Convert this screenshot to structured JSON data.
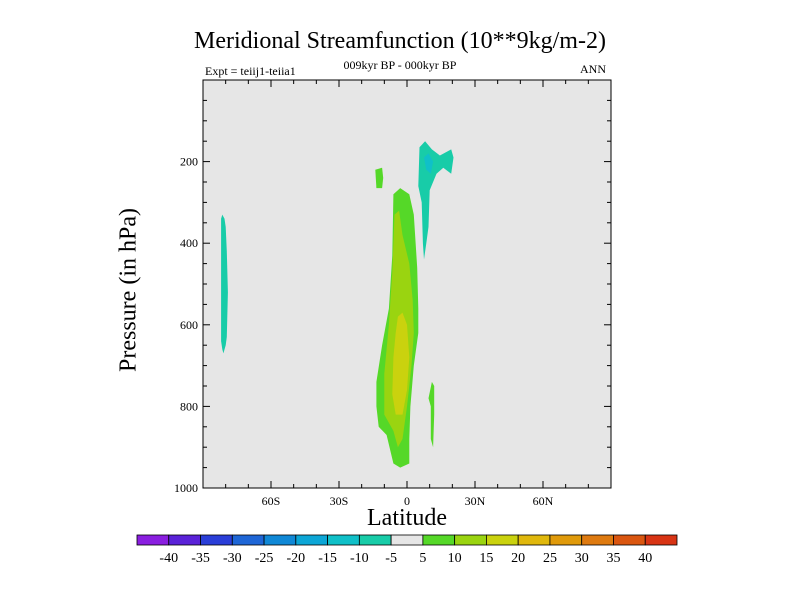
{
  "chart_data": {
    "type": "heatmap",
    "title": "Meridional Streamfunction (10**9kg/m-2)",
    "subtitle_left": "Expt = teiij1-teiia1",
    "subtitle_center": "009kyr BP - 000kyr BP",
    "subtitle_right": "ANN",
    "xlabel": "Latitude",
    "ylabel": "Pressure (in hPa)",
    "x_range": [
      -90,
      90
    ],
    "y_range": [
      0,
      1000
    ],
    "y_reversed": true,
    "x_ticks": [
      {
        "value": -60,
        "label": "60S"
      },
      {
        "value": -30,
        "label": "30S"
      },
      {
        "value": 0,
        "label": "0"
      },
      {
        "value": 30,
        "label": "30N"
      },
      {
        "value": 60,
        "label": "60N"
      }
    ],
    "y_ticks": [
      {
        "value": 200,
        "label": "200"
      },
      {
        "value": 400,
        "label": "400"
      },
      {
        "value": 600,
        "label": "600"
      },
      {
        "value": 800,
        "label": "800"
      },
      {
        "value": 1000,
        "label": "1000"
      }
    ],
    "background_color": "#e6e6e6",
    "colorbar": {
      "levels": [
        "-40",
        "-35",
        "-30",
        "-25",
        "-20",
        "-15",
        "-10",
        "-5",
        "5",
        "10",
        "15",
        "20",
        "25",
        "30",
        "35",
        "40"
      ],
      "colors": [
        "#8a1ee0",
        "#5a22d8",
        "#2a3ed8",
        "#1e66d6",
        "#1088d6",
        "#0ca6d6",
        "#10c0c8",
        "#18cca8",
        "#e6e6e6",
        "#55d828",
        "#9ad410",
        "#cad20e",
        "#e0b80c",
        "#e09a0a",
        "#de7a10",
        "#da5610",
        "#d83414"
      ]
    },
    "regions": [
      {
        "name": "sh-highlat-negative",
        "value_range": [
          -10,
          -5
        ],
        "color": "#18cca8",
        "points": [
          [
            -81.5,
            330
          ],
          [
            -80.5,
            340
          ],
          [
            -80.0,
            360
          ],
          [
            -79.5,
            420
          ],
          [
            -79.0,
            520
          ],
          [
            -79.5,
            630
          ],
          [
            -80.0,
            650
          ],
          [
            -81.0,
            670
          ],
          [
            -81.5,
            660
          ],
          [
            -82.0,
            640
          ],
          [
            -82.0,
            500
          ],
          [
            -82.0,
            380
          ],
          [
            -82.0,
            340
          ]
        ]
      },
      {
        "name": "nh-upper-negative",
        "value_range": [
          -10,
          -5
        ],
        "color": "#18cca8",
        "points": [
          [
            5.5,
            165
          ],
          [
            8.0,
            150
          ],
          [
            11.0,
            170
          ],
          [
            14.5,
            185
          ],
          [
            19.5,
            170
          ],
          [
            20.5,
            190
          ],
          [
            19.5,
            230
          ],
          [
            16.0,
            215
          ],
          [
            13.0,
            230
          ],
          [
            10.0,
            270
          ],
          [
            9.5,
            360
          ],
          [
            8.5,
            400
          ],
          [
            7.5,
            440
          ],
          [
            7.0,
            400
          ],
          [
            6.5,
            300
          ],
          [
            5.0,
            260
          ]
        ]
      },
      {
        "name": "nh-upper-negative-core",
        "value_range": [
          -15,
          -10
        ],
        "color": "#10c0c8",
        "points": [
          [
            7.5,
            190
          ],
          [
            9.5,
            180
          ],
          [
            11.5,
            200
          ],
          [
            10.5,
            230
          ],
          [
            8.5,
            220
          ]
        ]
      },
      {
        "name": "tropical-upper-positive",
        "value_range": [
          5,
          10
        ],
        "color": "#55d828",
        "points": [
          [
            -14.0,
            220
          ],
          [
            -11.0,
            215
          ],
          [
            -10.5,
            240
          ],
          [
            -11.0,
            265
          ],
          [
            -13.5,
            265
          ]
        ]
      },
      {
        "name": "tropical-positive-cell",
        "value_range": [
          5,
          10
        ],
        "color": "#55d828",
        "points": [
          [
            -6.0,
            280
          ],
          [
            -3.0,
            265
          ],
          [
            1.0,
            280
          ],
          [
            3.0,
            330
          ],
          [
            4.5,
            460
          ],
          [
            5.0,
            560
          ],
          [
            5.0,
            620
          ],
          [
            3.0,
            700
          ],
          [
            1.5,
            800
          ],
          [
            1.0,
            880
          ],
          [
            1.0,
            940
          ],
          [
            -3.0,
            950
          ],
          [
            -6.0,
            940
          ],
          [
            -9.0,
            870
          ],
          [
            -12.5,
            850
          ],
          [
            -13.5,
            800
          ],
          [
            -13.5,
            740
          ],
          [
            -11.0,
            650
          ],
          [
            -8.0,
            560
          ],
          [
            -6.5,
            430
          ]
        ]
      },
      {
        "name": "tropical-positive-cell-inner",
        "value_range": [
          10,
          15
        ],
        "color": "#9ad410",
        "points": [
          [
            -5.5,
            330
          ],
          [
            -3.5,
            320
          ],
          [
            -2.0,
            380
          ],
          [
            1.0,
            450
          ],
          [
            2.5,
            540
          ],
          [
            3.0,
            620
          ],
          [
            2.0,
            700
          ],
          [
            0.0,
            800
          ],
          [
            -2.0,
            880
          ],
          [
            -4.0,
            900
          ],
          [
            -6.0,
            860
          ],
          [
            -10.0,
            820
          ],
          [
            -10.0,
            720
          ],
          [
            -8.0,
            600
          ],
          [
            -6.5,
            470
          ]
        ]
      },
      {
        "name": "tropical-positive-cell-core",
        "value_range": [
          15,
          20
        ],
        "color": "#cad20e",
        "points": [
          [
            -4.0,
            580
          ],
          [
            -2.0,
            570
          ],
          [
            0.0,
            600
          ],
          [
            1.0,
            680
          ],
          [
            0.0,
            760
          ],
          [
            -2.0,
            820
          ],
          [
            -5.0,
            820
          ],
          [
            -6.5,
            770
          ],
          [
            -6.0,
            680
          ],
          [
            -5.0,
            620
          ]
        ]
      },
      {
        "name": "nh-lower-positive",
        "value_range": [
          5,
          10
        ],
        "color": "#55d828",
        "points": [
          [
            11.0,
            740
          ],
          [
            12.0,
            750
          ],
          [
            12.0,
            820
          ],
          [
            11.5,
            900
          ],
          [
            10.5,
            880
          ],
          [
            10.5,
            800
          ],
          [
            9.5,
            780
          ]
        ]
      }
    ]
  }
}
